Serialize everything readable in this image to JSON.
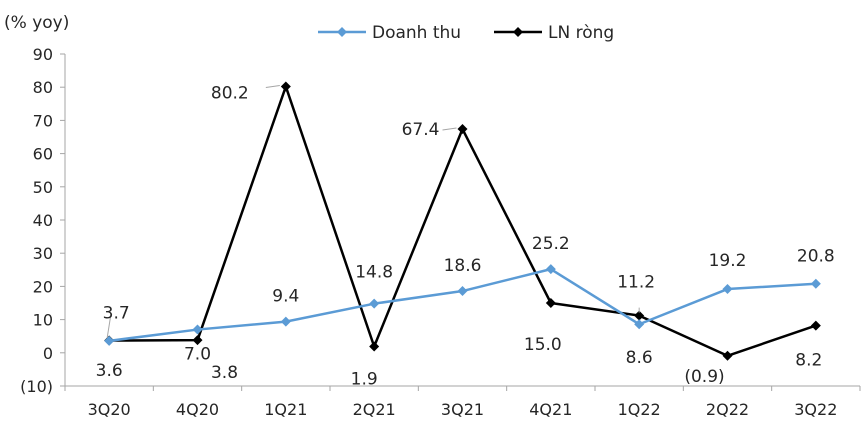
{
  "chart_data": {
    "type": "line",
    "ylabel": "(% yoy)",
    "categories": [
      "3Q20",
      "4Q20",
      "1Q21",
      "2Q21",
      "3Q21",
      "4Q21",
      "1Q22",
      "2Q22",
      "3Q22"
    ],
    "ylim": [
      -10,
      90
    ],
    "yticks": [
      -10,
      0,
      10,
      20,
      30,
      40,
      50,
      60,
      70,
      80,
      90
    ],
    "ytick_labels": [
      "(10)",
      "0",
      "10",
      "20",
      "30",
      "40",
      "50",
      "60",
      "70",
      "80",
      "90"
    ],
    "grid": false,
    "legend_position": "top",
    "series": [
      {
        "name": "Doanh thu",
        "color": "#5b9bd5",
        "values": [
          3.6,
          7.0,
          9.4,
          14.8,
          18.6,
          25.2,
          8.6,
          19.2,
          20.8
        ],
        "labels": [
          "3.6",
          "7.0",
          "9.4",
          "14.8",
          "18.6",
          "25.2",
          "8.6",
          "19.2",
          "20.8"
        ]
      },
      {
        "name": "LN ròng",
        "color": "#000000",
        "values": [
          3.7,
          3.8,
          80.2,
          1.9,
          67.4,
          15.0,
          11.2,
          -0.9,
          8.2
        ],
        "labels": [
          "3.7",
          "3.8",
          "80.2",
          "1.9",
          "67.4",
          "15.0",
          "11.2",
          "(0.9)",
          "8.2"
        ]
      }
    ]
  }
}
